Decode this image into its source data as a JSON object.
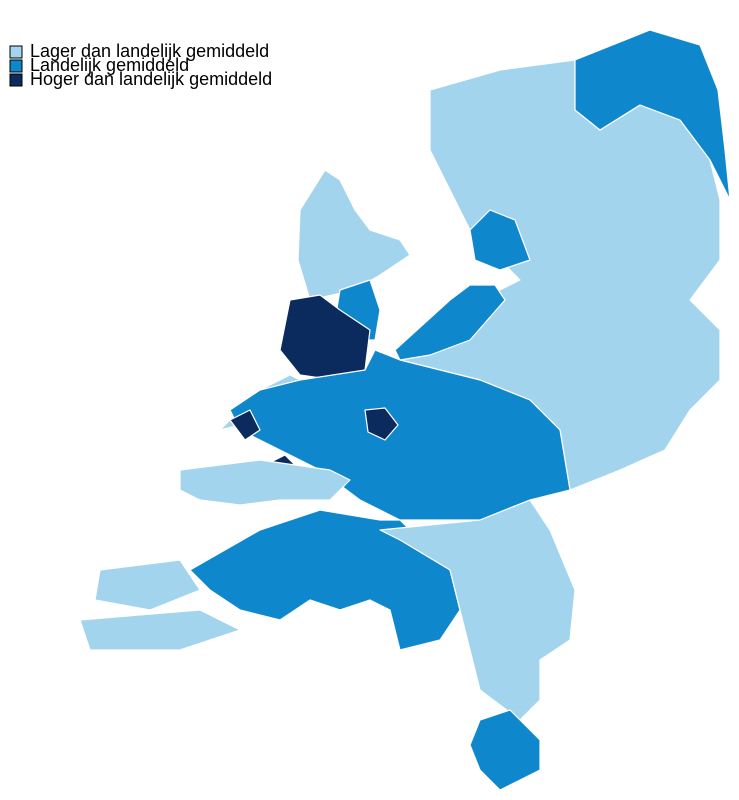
{
  "legend": {
    "items": [
      {
        "label": "Lager dan landelijk gemiddeld",
        "color": "#a3d4ee"
      },
      {
        "label": "Landelijk gemiddeld",
        "color": "#0f87cd"
      },
      {
        "label": "Hoger dan landelijk gemiddeld",
        "color": "#0b2b5e"
      }
    ]
  }
}
